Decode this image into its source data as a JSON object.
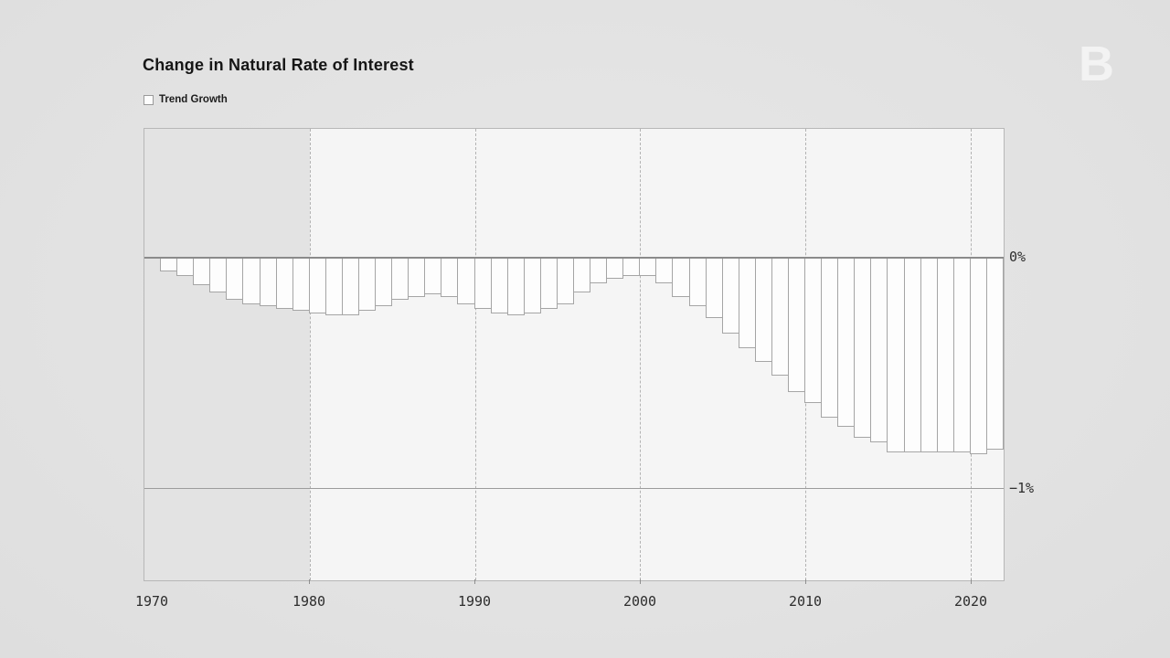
{
  "page": {
    "title": "Change in Natural Rate of Interest",
    "legend": {
      "label": "Trend Growth"
    },
    "watermark_glyph": "B"
  },
  "colors": {
    "page_background": "#e3e3e3",
    "plot_background": "#f5f5f5",
    "shaded_region": "#e3e3e3",
    "bar_fill": "#fdfdfd",
    "bar_border": "#a5a5a5",
    "zero_line": "#8b8b8b",
    "gridline": "#b3b3b3",
    "text": "#1c1c1c"
  },
  "chart_data": {
    "type": "bar",
    "title": "Change in Natural Rate of Interest",
    "series_name": "Trend Growth",
    "unit": "percent",
    "x": [
      1971,
      1972,
      1973,
      1974,
      1975,
      1976,
      1977,
      1978,
      1979,
      1980,
      1981,
      1982,
      1983,
      1984,
      1985,
      1986,
      1987,
      1988,
      1989,
      1990,
      1991,
      1992,
      1993,
      1994,
      1995,
      1996,
      1997,
      1998,
      1999,
      2000,
      2001,
      2002,
      2003,
      2004,
      2005,
      2006,
      2007,
      2008,
      2009,
      2010,
      2011,
      2012,
      2013,
      2014,
      2015,
      2016,
      2017,
      2018,
      2019,
      2020,
      2021
    ],
    "values": [
      -0.06,
      -0.08,
      -0.12,
      -0.15,
      -0.18,
      -0.2,
      -0.21,
      -0.22,
      -0.23,
      -0.24,
      -0.25,
      -0.25,
      -0.23,
      -0.21,
      -0.18,
      -0.17,
      -0.16,
      -0.17,
      -0.2,
      -0.22,
      -0.24,
      -0.25,
      -0.24,
      -0.22,
      -0.2,
      -0.15,
      -0.11,
      -0.09,
      -0.08,
      -0.08,
      -0.11,
      -0.17,
      -0.21,
      -0.26,
      -0.33,
      -0.39,
      -0.45,
      -0.51,
      -0.58,
      -0.63,
      -0.69,
      -0.73,
      -0.78,
      -0.8,
      -0.84,
      -0.84,
      -0.84,
      -0.84,
      -0.84,
      -0.85,
      -0.83
    ],
    "xlim": [
      1970,
      2022
    ],
    "ylim": [
      -1.4,
      0.56
    ],
    "x_ticks": [
      "1970",
      "1980",
      "1990",
      "2000",
      "2010",
      "2020"
    ],
    "x_tick_years": [
      1970,
      1980,
      1990,
      2000,
      2010,
      2020
    ],
    "y_ticks": [
      "0%",
      "−1%"
    ],
    "y_tick_values": [
      0,
      -1
    ],
    "grid": "dashed vertical lines at decades",
    "shaded_region_years": [
      1970,
      1980
    ],
    "legend_position": "top-left",
    "bars_hang_from_zero": true
  }
}
